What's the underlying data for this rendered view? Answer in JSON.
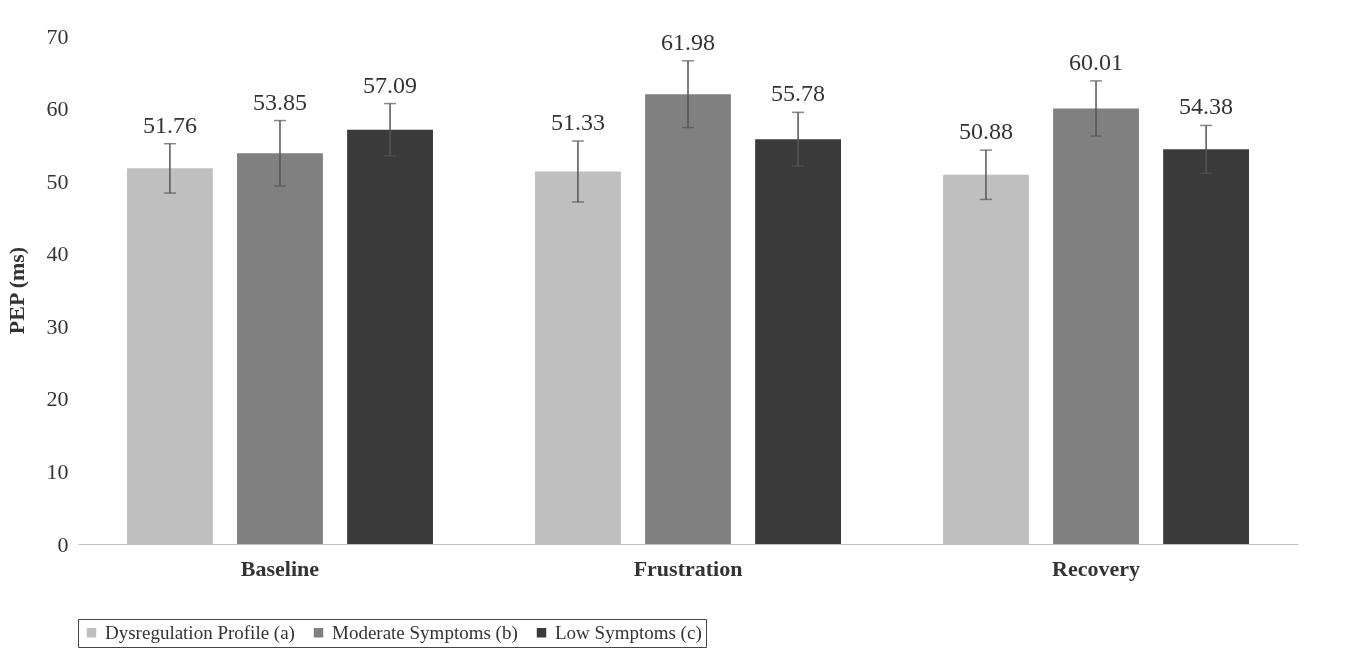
{
  "chart_data": {
    "type": "bar",
    "ylabel": "PEP (ms)",
    "categories": [
      "Baseline",
      "Frustration",
      "Recovery"
    ],
    "series": [
      {
        "name": "Dysregulation Profile (a)",
        "color": "#bfbfbf",
        "values": [
          51.76,
          51.33,
          50.88
        ],
        "errors": [
          3.4,
          4.2,
          3.4
        ]
      },
      {
        "name": "Moderate Symptoms (b)",
        "color": "#808080",
        "values": [
          53.85,
          61.98,
          60.01
        ],
        "errors": [
          4.5,
          4.6,
          3.8
        ]
      },
      {
        "name": "Low Symptoms (c)",
        "color": "#3a3a3a",
        "values": [
          57.09,
          55.78,
          54.38
        ],
        "errors": [
          3.6,
          3.7,
          3.3
        ]
      }
    ],
    "ylim": [
      0,
      70
    ],
    "yticks": [
      0,
      10,
      20,
      30,
      40,
      50,
      60,
      70
    ],
    "data_labels": true,
    "grid": false,
    "legend": "bottom"
  }
}
